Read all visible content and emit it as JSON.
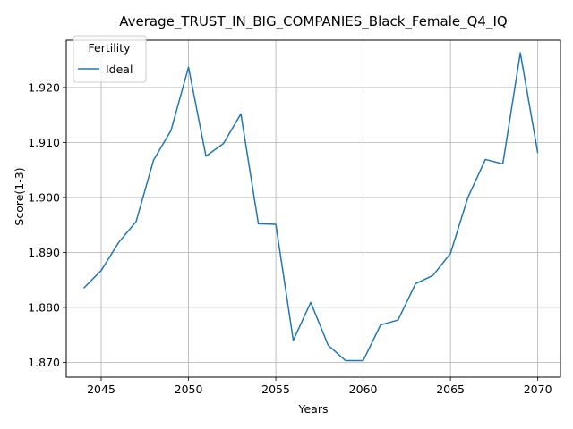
{
  "chart_data": {
    "type": "line",
    "title": "Average_TRUST_IN_BIG_COMPANIES_Black_Female_Q4_IQ",
    "xlabel": "Years",
    "ylabel": "Score(1-3)",
    "xlim": [
      2043,
      2071.3
    ],
    "ylim": [
      1.8673,
      1.9286
    ],
    "xticks": [
      2045,
      2050,
      2055,
      2060,
      2065,
      2070
    ],
    "yticks": [
      1.87,
      1.88,
      1.89,
      1.9,
      1.91,
      1.92
    ],
    "ytick_labels": [
      "1.870",
      "1.880",
      "1.890",
      "1.900",
      "1.910",
      "1.920"
    ],
    "grid": true,
    "legend": {
      "title": "Fertility",
      "position": "top-left"
    },
    "series": [
      {
        "name": "Ideal",
        "color": "#1f77b4",
        "x": [
          2044,
          2045,
          2046,
          2047,
          2048,
          2049,
          2050,
          2051,
          2052,
          2053,
          2054,
          2055,
          2056,
          2057,
          2058,
          2059,
          2060,
          2061,
          2062,
          2063,
          2064,
          2065,
          2066,
          2067,
          2068,
          2069,
          2070
        ],
        "y": [
          1.8835,
          1.8867,
          1.8918,
          1.8956,
          1.9068,
          1.9122,
          1.9237,
          1.9075,
          1.9098,
          1.9152,
          1.8952,
          1.8951,
          1.874,
          1.8809,
          1.8731,
          1.8703,
          1.8703,
          1.8768,
          1.8777,
          1.8843,
          1.8858,
          1.8898,
          1.9,
          1.9069,
          1.9061,
          1.9263,
          1.9081
        ]
      }
    ]
  }
}
